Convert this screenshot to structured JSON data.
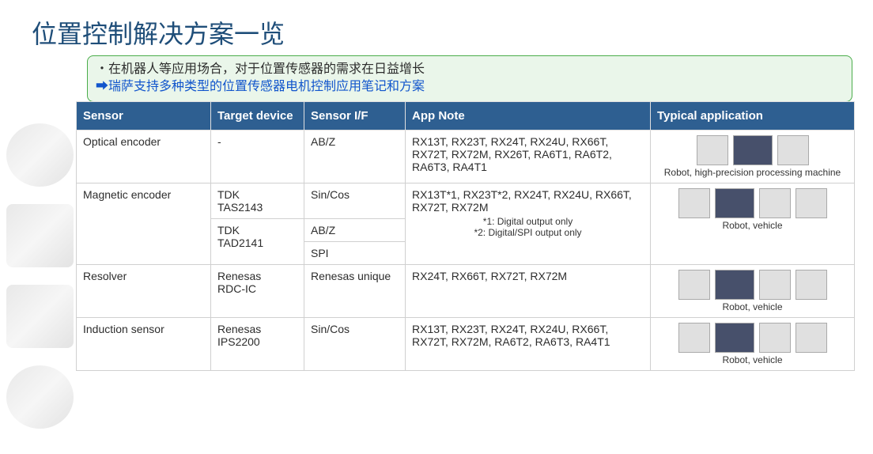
{
  "title": "位置控制解决方案一览",
  "intro": {
    "line1": "・在机器人等应用场合，对于位置传感器的需求在日益增长",
    "line2": "➡瑞萨支持多种类型的位置传感器电机控制应用笔记和方案"
  },
  "headers": {
    "sensor": "Sensor",
    "target": "Target device",
    "if": "Sensor I/F",
    "note": "App Note",
    "app": "Typical application"
  },
  "rows": {
    "r1": {
      "sensor": "Optical encoder",
      "target": "-",
      "if": "AB/Z",
      "note": "RX13T, RX23T, RX24T, RX24U, RX66T, RX72T, RX72M, RX26T, RA6T1, RA6T2, RA6T3, RA4T1",
      "app_caption": "Robot, high-precision processing machine"
    },
    "r2": {
      "sensor": "Magnetic encoder",
      "target1": "TDK\n TAS2143",
      "if1": "Sin/Cos",
      "target2": "TDK\n TAD2141",
      "if2": "AB/Z",
      "if3": "SPI",
      "note": "RX13T*1, RX23T*2, RX24T, RX24U, RX66T, RX72T, RX72M",
      "note_sub": "*1: Digital output only\n*2: Digital/SPI output only",
      "app_caption": "Robot, vehicle"
    },
    "r3": {
      "sensor": "Resolver",
      "target": "Renesas\n RDC-IC",
      "if": "Renesas unique",
      "note": "RX24T, RX66T, RX72T,    RX72M",
      "app_caption": "Robot, vehicle"
    },
    "r4": {
      "sensor": "Induction sensor",
      "target": "Renesas\n IPS2200",
      "if": "Sin/Cos",
      "note": "RX13T, RX23T, RX24T, RX24U, RX66T, RX72T, RX72M, RA6T2, RA6T3, RA4T1",
      "app_caption": "Robot, vehicle"
    }
  },
  "colors": {
    "title": "#1f4e79",
    "intro_border": "#4aad4a",
    "intro_bg": "#eaf6ea",
    "intro_text": "#2d2d2d",
    "intro_link": "#1155cc",
    "th_bg": "#2e5f91",
    "th_fg": "#ffffff",
    "border": "#d0d0d0"
  }
}
